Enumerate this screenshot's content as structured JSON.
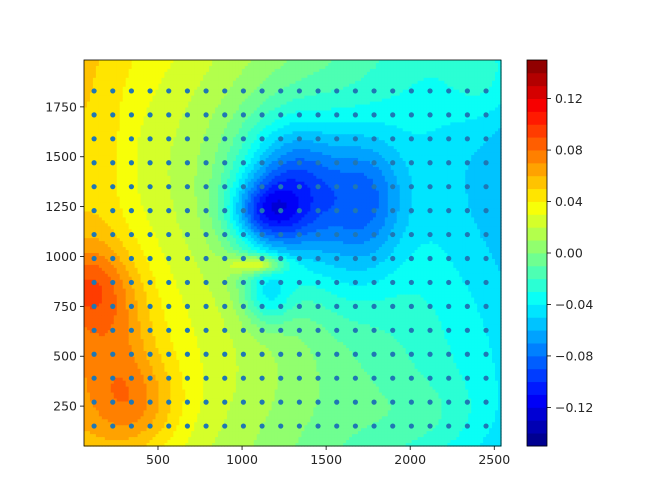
{
  "chart_data": {
    "type": "heatmap",
    "subtype": "filled-contour with overlaid scatter grid",
    "colormap": "jet",
    "xlim": [
      60,
      2540
    ],
    "ylim": [
      50,
      1985
    ],
    "x_ticks": [
      500,
      1000,
      1500,
      2000,
      2500
    ],
    "x_tick_labels": [
      "500",
      "1000",
      "1500",
      "2000",
      "2500"
    ],
    "y_ticks": [
      250,
      500,
      750,
      1000,
      1250,
      1500,
      1750
    ],
    "y_tick_labels": [
      "250",
      "500",
      "750",
      "1000",
      "1250",
      "1500",
      "1750"
    ],
    "colorbar": {
      "range": [
        -0.15,
        0.15
      ],
      "levels": 30,
      "ticks": [
        -0.12,
        -0.08,
        -0.04,
        0.0,
        0.04,
        0.08,
        0.12
      ],
      "tick_labels": [
        "−0.12",
        "−0.08",
        "−0.04",
        "0.00",
        "0.04",
        "0.08",
        "0.12"
      ]
    },
    "scatter_points": {
      "x_start": 120,
      "x_step": 111,
      "x_count": 22,
      "y_start": 150,
      "y_step": 120,
      "y_count": 15,
      "color": "#1f77b4"
    },
    "field_features": [
      {
        "x": 90,
        "y": 850,
        "value": 0.075
      },
      {
        "x": 380,
        "y": 250,
        "value": 0.065
      },
      {
        "x": 300,
        "y": 650,
        "value": 0.055
      },
      {
        "x": 1300,
        "y": 1300,
        "value": -0.07
      },
      {
        "x": 1100,
        "y": 1250,
        "value": -0.055
      },
      {
        "x": 1800,
        "y": 1300,
        "value": -0.035
      },
      {
        "x": 1150,
        "y": 800,
        "value": -0.03
      },
      {
        "x": 1150,
        "y": 950,
        "value": 0.02
      }
    ],
    "grid": false,
    "title": "",
    "xlabel": "",
    "ylabel": ""
  }
}
